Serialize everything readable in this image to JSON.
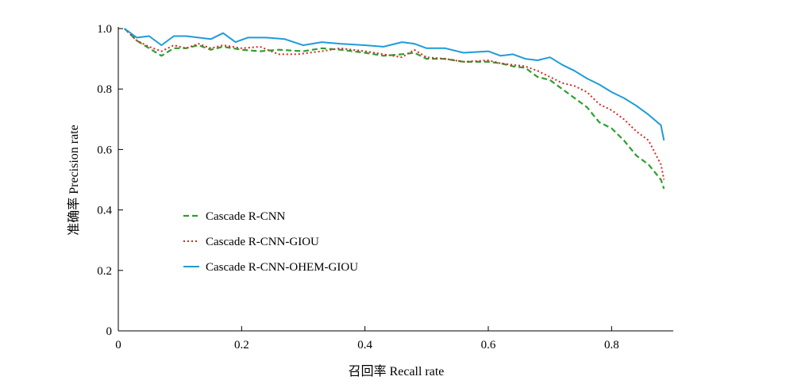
{
  "chart_data": {
    "type": "line",
    "title": "",
    "xlabel": "召回率 Recall rate",
    "ylabel": "准确率 Precision rate",
    "xlim": [
      0,
      0.9
    ],
    "ylim": [
      0,
      1.0
    ],
    "xticks": [
      0,
      0.2,
      0.4,
      0.6,
      0.8
    ],
    "xtick_labels": [
      "0",
      "0.2",
      "0.4",
      "0.6",
      "0.8"
    ],
    "yticks": [
      0,
      0.2,
      0.4,
      0.6,
      0.8,
      1.0
    ],
    "ytick_labels": [
      "0",
      "0.2",
      "0.4",
      "0.6",
      "0.8",
      "1.0"
    ],
    "grid": false,
    "legend_position": "lower-left",
    "series": [
      {
        "name": "Cascade R-CNN",
        "color": "#2ca02c",
        "dash": "dashed",
        "x": [
          0.01,
          0.03,
          0.05,
          0.07,
          0.09,
          0.11,
          0.13,
          0.15,
          0.17,
          0.2,
          0.23,
          0.26,
          0.3,
          0.33,
          0.36,
          0.4,
          0.43,
          0.46,
          0.48,
          0.5,
          0.53,
          0.56,
          0.6,
          0.62,
          0.64,
          0.66,
          0.68,
          0.7,
          0.72,
          0.74,
          0.76,
          0.78,
          0.8,
          0.82,
          0.84,
          0.86,
          0.88,
          0.885
        ],
        "y": [
          1.0,
          0.96,
          0.935,
          0.91,
          0.935,
          0.935,
          0.945,
          0.93,
          0.94,
          0.93,
          0.925,
          0.93,
          0.925,
          0.935,
          0.93,
          0.92,
          0.91,
          0.915,
          0.92,
          0.9,
          0.9,
          0.89,
          0.89,
          0.885,
          0.875,
          0.87,
          0.84,
          0.83,
          0.8,
          0.77,
          0.74,
          0.69,
          0.67,
          0.63,
          0.58,
          0.55,
          0.5,
          0.47
        ]
      },
      {
        "name": "Cascade R-CNN-GIOU",
        "color": "#d62728",
        "dash": "dotted",
        "x": [
          0.01,
          0.03,
          0.05,
          0.07,
          0.09,
          0.11,
          0.13,
          0.15,
          0.17,
          0.2,
          0.23,
          0.26,
          0.29,
          0.33,
          0.36,
          0.4,
          0.43,
          0.46,
          0.48,
          0.5,
          0.53,
          0.56,
          0.6,
          0.62,
          0.64,
          0.66,
          0.68,
          0.7,
          0.72,
          0.74,
          0.76,
          0.78,
          0.8,
          0.82,
          0.84,
          0.86,
          0.88,
          0.885
        ],
        "y": [
          1.0,
          0.96,
          0.94,
          0.925,
          0.945,
          0.935,
          0.95,
          0.935,
          0.945,
          0.935,
          0.94,
          0.915,
          0.915,
          0.925,
          0.935,
          0.925,
          0.915,
          0.905,
          0.93,
          0.905,
          0.9,
          0.89,
          0.895,
          0.885,
          0.88,
          0.875,
          0.86,
          0.84,
          0.82,
          0.81,
          0.79,
          0.75,
          0.73,
          0.7,
          0.66,
          0.63,
          0.55,
          0.5
        ]
      },
      {
        "name": "Cascade R-CNN-OHEM-GIOU",
        "color": "#1f9bd9",
        "dash": "solid",
        "x": [
          0.01,
          0.03,
          0.05,
          0.07,
          0.09,
          0.11,
          0.13,
          0.15,
          0.17,
          0.19,
          0.21,
          0.24,
          0.27,
          0.3,
          0.33,
          0.36,
          0.4,
          0.43,
          0.46,
          0.48,
          0.5,
          0.53,
          0.56,
          0.6,
          0.62,
          0.64,
          0.66,
          0.68,
          0.7,
          0.72,
          0.74,
          0.76,
          0.78,
          0.8,
          0.82,
          0.84,
          0.86,
          0.88,
          0.885
        ],
        "y": [
          1.0,
          0.97,
          0.975,
          0.945,
          0.975,
          0.975,
          0.97,
          0.965,
          0.985,
          0.955,
          0.97,
          0.97,
          0.965,
          0.945,
          0.955,
          0.95,
          0.945,
          0.94,
          0.955,
          0.95,
          0.935,
          0.935,
          0.92,
          0.925,
          0.91,
          0.915,
          0.9,
          0.895,
          0.905,
          0.88,
          0.86,
          0.835,
          0.815,
          0.79,
          0.77,
          0.745,
          0.715,
          0.68,
          0.63
        ]
      }
    ]
  }
}
